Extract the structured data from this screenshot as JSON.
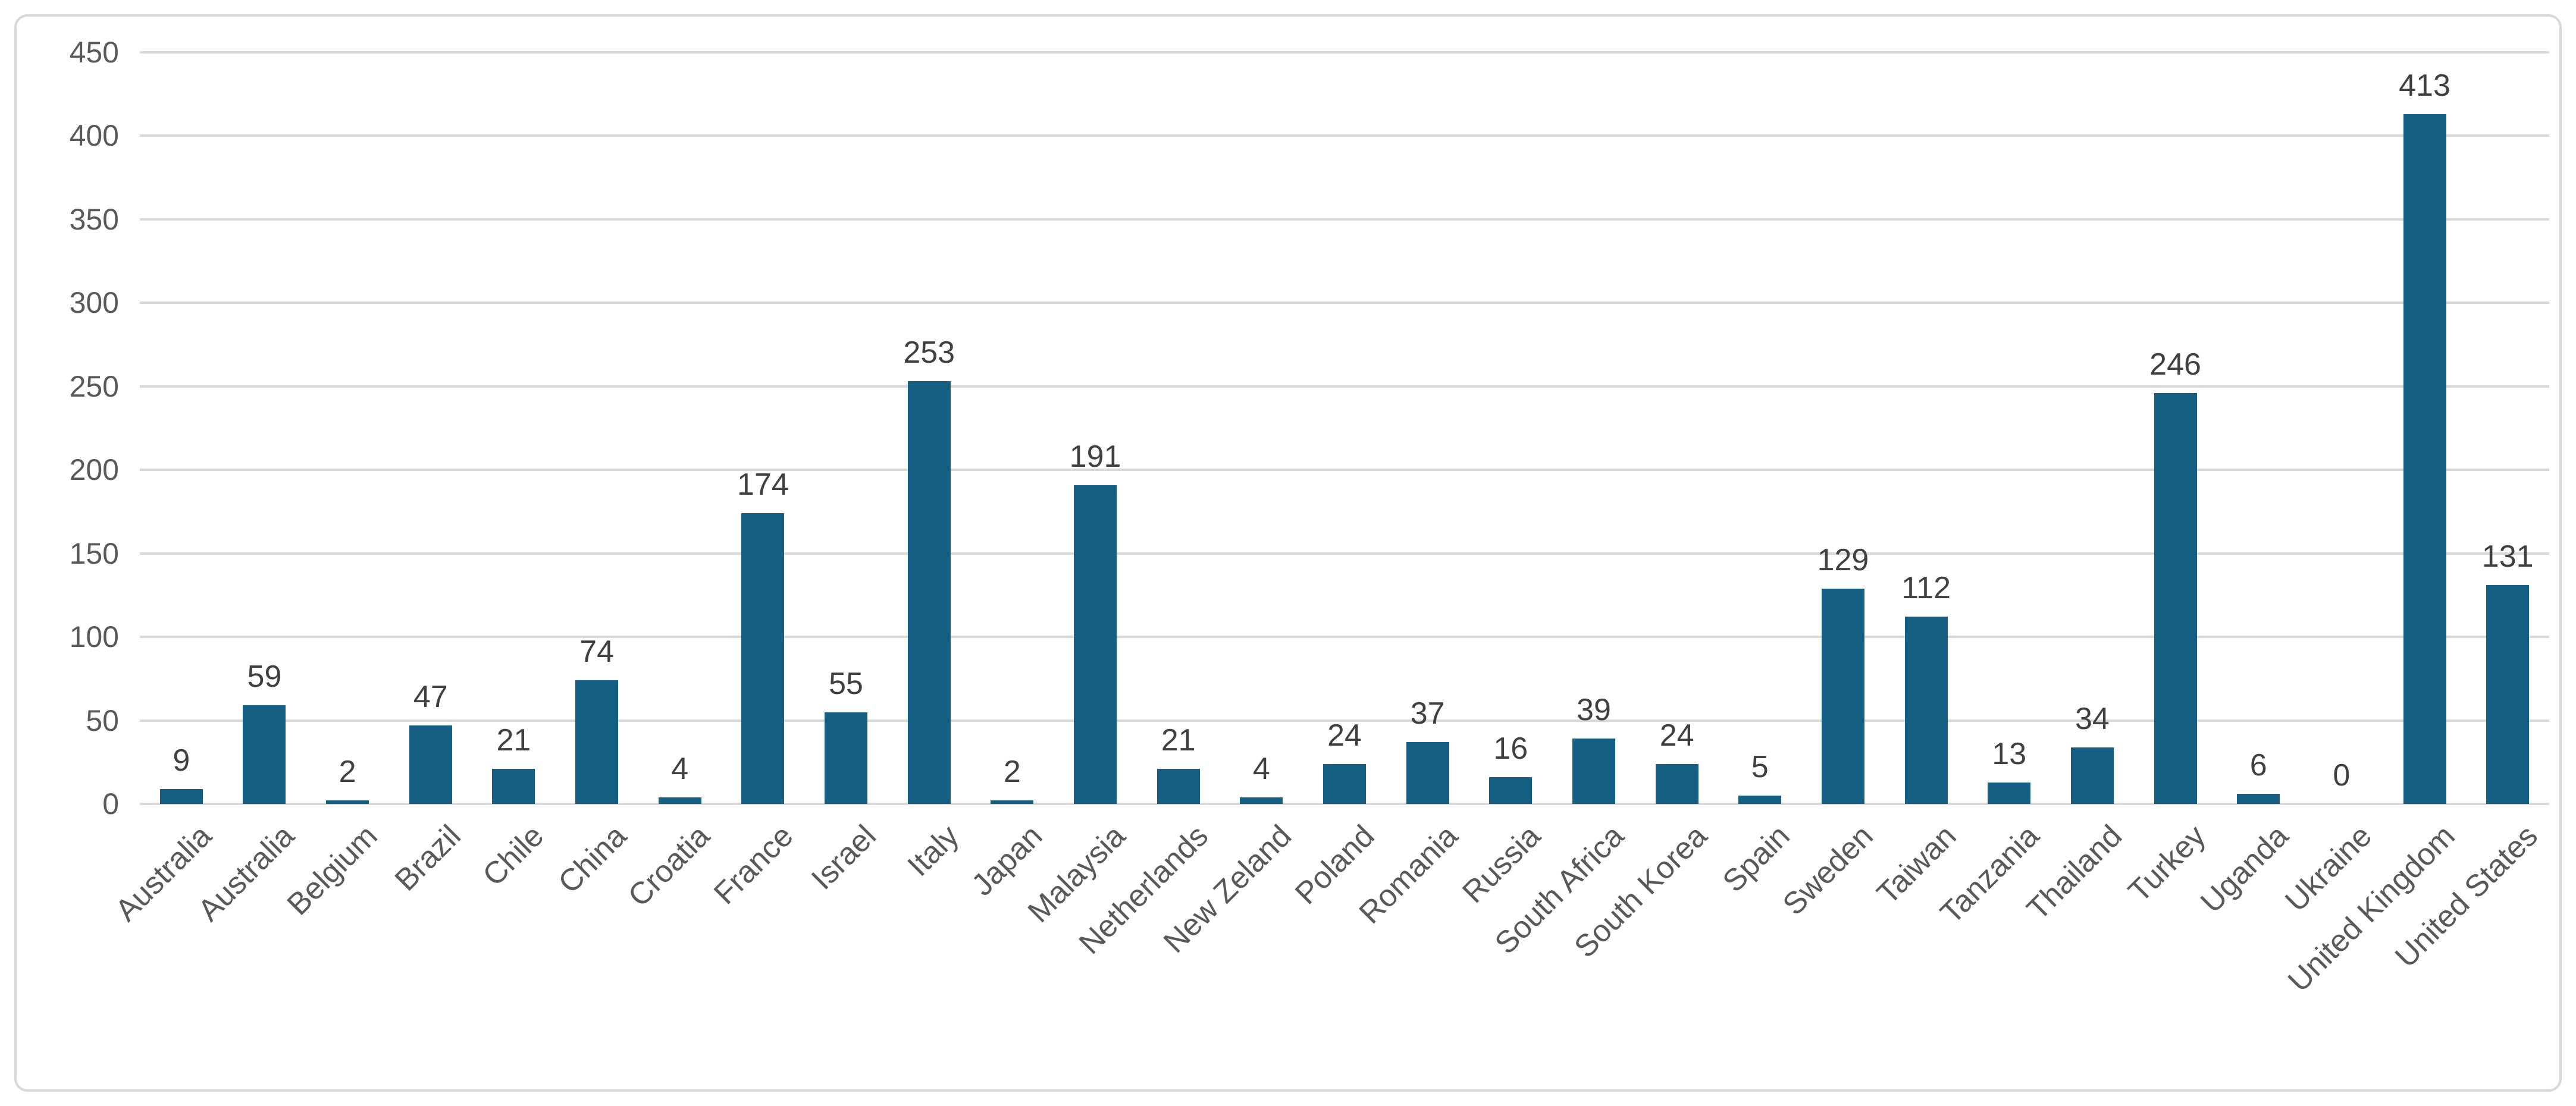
{
  "chart_data": {
    "type": "bar",
    "title": "",
    "xlabel": "",
    "ylabel": "",
    "categories": [
      "Australia",
      "Australia",
      "Belgium",
      "Brazil",
      "Chile",
      "China",
      "Croatia",
      "France",
      "Israel",
      "Italy",
      "Japan",
      "Malaysia",
      "Netherlands",
      "New Zeland",
      "Poland",
      "Romania",
      "Russia",
      "South Africa",
      "South Korea",
      "Spain",
      "Sweden",
      "Taiwan",
      "Tanzania",
      "Thailand",
      "Turkey",
      "Uganda",
      "Ukraine",
      "United Kingdom",
      "United States"
    ],
    "values": [
      9,
      59,
      2,
      47,
      21,
      74,
      4,
      174,
      55,
      253,
      2,
      191,
      21,
      4,
      24,
      37,
      16,
      39,
      24,
      5,
      129,
      112,
      13,
      34,
      246,
      6,
      0,
      413,
      131
    ],
    "yticks": [
      0,
      50,
      100,
      150,
      200,
      250,
      300,
      350,
      400,
      450
    ],
    "ylim": [
      0,
      450
    ],
    "grid": "horizontal",
    "legend_position": "none",
    "colors": {
      "bar": "#156082",
      "data_label": "#404040",
      "axis_label": "#595959",
      "gridline": "#D9D9D9",
      "frame_border": "#D8D8D8",
      "background": "#FFFFFF"
    }
  }
}
